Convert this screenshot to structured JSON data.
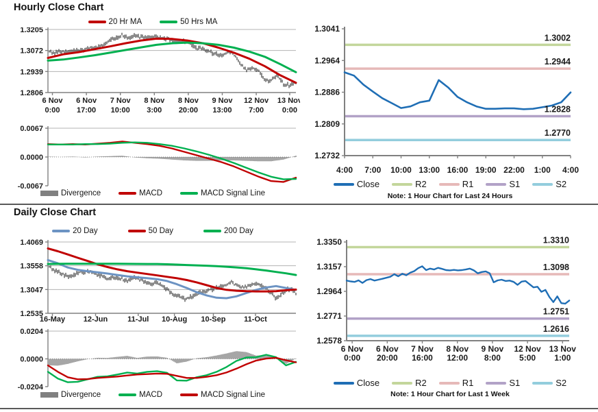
{
  "page": {
    "hourly_title": "Hourly Close Chart",
    "daily_title": "Daily Close Chart"
  },
  "colors": {
    "black_series": "#141414",
    "red": "#C00000",
    "green": "#00B050",
    "steel_blue": "#6C93C3",
    "pivot_blue": "#1F6EB5",
    "r2": "#C3D69B",
    "r1": "#E6B9B8",
    "s1": "#B2A2C7",
    "s2": "#93CDDD",
    "divergence_gray": "#808080",
    "axis_gray": "#808080",
    "grid_gray": "#B3B3B3"
  },
  "chart_data": [
    {
      "id": "hourly_price",
      "type": "line",
      "title": "Hourly Close Chart",
      "ylim": [
        1.2806,
        1.3205
      ],
      "yticks": [
        "1.3205",
        "1.3072",
        "1.2939",
        "1.2806"
      ],
      "xticks": [
        "6 Nov|0:00",
        "6 Nov|17:00",
        "7 Nov|10:00",
        "8 Nov|3:00",
        "8 Nov|20:00",
        "9 Nov|13:00",
        "12 Nov|7:00",
        "13 Nov|0:00"
      ],
      "xtick_pos": [
        0.018,
        0.155,
        0.292,
        0.429,
        0.566,
        0.703,
        0.84,
        0.975
      ],
      "grid": "price",
      "legend": [
        {
          "label": "20 Hr MA",
          "color": "#C00000"
        },
        {
          "label": "50 Hrs MA",
          "color": "#00B050"
        }
      ],
      "series": [
        {
          "name": "Close",
          "color": "#141414",
          "style": "bars",
          "values": [
            1.306,
            1.3058,
            1.3068,
            1.3062,
            1.3075,
            1.3068,
            1.308,
            1.3085,
            1.3095,
            1.3105,
            1.3135,
            1.315,
            1.317,
            1.3152,
            1.3165,
            1.3158,
            1.316,
            1.3155,
            1.3152,
            1.3148,
            1.3145,
            1.3118,
            1.3135,
            1.3118,
            1.3085,
            1.3082,
            1.3065,
            1.305,
            1.304,
            1.3062,
            1.305,
            1.299,
            1.2952,
            1.2962,
            1.2945,
            1.2888,
            1.288,
            1.2918,
            1.286,
            1.2852,
            1.2872
          ]
        },
        {
          "name": "20 Hr MA",
          "color": "#C00000",
          "width": 3,
          "values": [
            1.3025,
            1.3048,
            1.3062,
            1.308,
            1.3098,
            1.3118,
            1.3135,
            1.3147,
            1.3145,
            1.3135,
            1.3118,
            1.309,
            1.3058,
            1.302,
            1.2972,
            1.2915,
            1.2868
          ]
        },
        {
          "name": "50 Hrs MA",
          "color": "#00B050",
          "width": 3,
          "values": [
            1.3008,
            1.3015,
            1.3028,
            1.3042,
            1.3058,
            1.3075,
            1.3092,
            1.3108,
            1.3118,
            1.3122,
            1.3118,
            1.3108,
            1.309,
            1.3065,
            1.3032,
            1.2985,
            1.2935
          ]
        }
      ]
    },
    {
      "id": "hourly_macd",
      "type": "line",
      "ylim": [
        -0.0067,
        0.0067
      ],
      "yticks": [
        "0.0067",
        "0.0000",
        "-0.0067"
      ],
      "grid": "macd",
      "legend": [
        {
          "label": "Divergence",
          "color": "#808080",
          "shape": "bar"
        },
        {
          "label": "MACD",
          "color": "#C00000"
        },
        {
          "label": "MACD Signal Line",
          "color": "#00B050"
        }
      ],
      "divergence": {
        "a": "MACD",
        "b": "MACD Signal Line"
      },
      "series": [
        {
          "name": "MACD",
          "color": "#C00000",
          "width": 2.4,
          "values": [
            0.003,
            0.0029,
            0.003,
            0.0029,
            0.0031,
            0.0033,
            0.0036,
            0.0033,
            0.003,
            0.0026,
            0.002,
            0.0012,
            0.0004,
            -0.0004,
            -0.0012,
            -0.0022,
            -0.0034,
            -0.0046,
            -0.0056,
            -0.0058,
            -0.0048
          ]
        },
        {
          "name": "MACD Signal Line",
          "color": "#00B050",
          "width": 2.4,
          "values": [
            0.0029,
            0.0029,
            0.0029,
            0.003,
            0.003,
            0.0031,
            0.0033,
            0.0034,
            0.0033,
            0.003,
            0.0026,
            0.002,
            0.0013,
            0.0005,
            -0.0004,
            -0.0014,
            -0.0025,
            -0.0036,
            -0.0046,
            -0.0052,
            -0.0051
          ]
        }
      ]
    },
    {
      "id": "hourly_pivot",
      "type": "line",
      "note": "Note: 1 Hour Chart for Last 24 Hours",
      "ylim": [
        1.2732,
        1.3041
      ],
      "yticks": [
        "1.3041",
        "1.2964",
        "1.2886",
        "1.2809",
        "1.2732"
      ],
      "xticks": [
        "4:00",
        "7:00",
        "10:00",
        "13:00",
        "16:00",
        "19:00",
        "22:00",
        "1:00",
        "4:00"
      ],
      "xtick_pos": [
        0,
        0.125,
        0.25,
        0.375,
        0.5,
        0.625,
        0.75,
        0.875,
        1
      ],
      "grid": "pivot",
      "legend": [
        {
          "label": "Close",
          "color": "#1F6EB5"
        },
        {
          "label": "R2",
          "color": "#C3D69B"
        },
        {
          "label": "R1",
          "color": "#E6B9B8"
        },
        {
          "label": "S1",
          "color": "#B2A2C7"
        },
        {
          "label": "S2",
          "color": "#93CDDD"
        }
      ],
      "series": [
        {
          "name": "R2",
          "style": "hline",
          "value": 1.3002,
          "label": "1.3002",
          "color": "#C3D69B"
        },
        {
          "name": "R1",
          "style": "hline",
          "value": 1.2944,
          "label": "1.2944",
          "color": "#E6B9B8"
        },
        {
          "name": "S1",
          "style": "hline",
          "value": 1.2828,
          "label": "1.2828",
          "color": "#B2A2C7"
        },
        {
          "name": "S2",
          "style": "hline",
          "value": 1.277,
          "label": "1.2770",
          "color": "#93CDDD"
        },
        {
          "name": "Close",
          "color": "#1F6EB5",
          "width": 2.6,
          "values": [
            1.2935,
            1.2927,
            1.2905,
            1.2888,
            1.2872,
            1.286,
            1.2848,
            1.2852,
            1.2862,
            1.2866,
            1.2916,
            1.2898,
            1.2875,
            1.2862,
            1.2852,
            1.2846,
            1.2846,
            1.2847,
            1.2847,
            1.2845,
            1.2846,
            1.285,
            1.2854,
            1.2862,
            1.2886
          ]
        }
      ]
    },
    {
      "id": "daily_price",
      "type": "line",
      "title": "Daily Close Chart",
      "ylim": [
        1.2535,
        1.4069
      ],
      "yticks": [
        "1.4069",
        "1.3558",
        "1.3047",
        "1.2535"
      ],
      "xticks": [
        "16-May",
        "12-Jun",
        "11-Jul",
        "10-Aug",
        "10-Sep",
        "11-Oct"
      ],
      "xtick_pos": [
        0.018,
        0.192,
        0.364,
        0.51,
        0.667,
        0.837
      ],
      "grid": "price",
      "legend": [
        {
          "label": "20 Day",
          "color": "#6C93C3"
        },
        {
          "label": "50 Day",
          "color": "#C00000"
        },
        {
          "label": "200 Day",
          "color": "#00B050"
        }
      ],
      "series": [
        {
          "name": "Close",
          "color": "#141414",
          "style": "bars",
          "values": [
            1.353,
            1.348,
            1.343,
            1.338,
            1.333,
            1.336,
            1.3395,
            1.342,
            1.343,
            1.3405,
            1.337,
            1.3335,
            1.326,
            1.329,
            1.33,
            1.327,
            1.3235,
            1.33,
            1.329,
            1.325,
            1.3205,
            1.3155,
            1.3185,
            1.313,
            1.3055,
            1.2985,
            1.2905,
            1.287,
            1.284,
            1.29,
            1.295,
            1.298,
            1.302,
            1.305,
            1.308,
            1.312,
            1.315,
            1.32,
            1.315,
            1.31,
            1.312,
            1.315,
            1.318,
            1.314,
            1.309,
            1.296,
            1.285,
            1.294,
            1.304,
            1.306,
            1.297
          ]
        },
        {
          "name": "20 Day",
          "color": "#6C93C3",
          "width": 3,
          "values": [
            1.368,
            1.361,
            1.352,
            1.347,
            1.344,
            1.3415,
            1.339,
            1.336,
            1.333,
            1.331,
            1.329,
            1.327,
            1.323,
            1.316,
            1.308,
            1.299,
            1.292,
            1.287,
            1.286,
            1.29,
            1.297,
            1.304,
            1.309,
            1.312,
            1.308,
            1.304
          ]
        },
        {
          "name": "50 Day",
          "color": "#C00000",
          "width": 3,
          "values": [
            1.393,
            1.387,
            1.38,
            1.373,
            1.366,
            1.359,
            1.353,
            1.348,
            1.344,
            1.341,
            1.338,
            1.335,
            1.332,
            1.329,
            1.325,
            1.32,
            1.314,
            1.308,
            1.304,
            1.302,
            1.301,
            1.3005,
            1.3005,
            1.301,
            1.303,
            1.3045
          ]
        },
        {
          "name": "200 Day",
          "color": "#00B050",
          "width": 3,
          "values": [
            1.3595,
            1.3598,
            1.36,
            1.36,
            1.36,
            1.36,
            1.36,
            1.36,
            1.3598,
            1.3597,
            1.3596,
            1.3595,
            1.359,
            1.3582,
            1.3574,
            1.3566,
            1.3558,
            1.3548,
            1.3536,
            1.3522,
            1.3505,
            1.348,
            1.3455,
            1.3425,
            1.3395,
            1.336
          ]
        }
      ]
    },
    {
      "id": "daily_macd",
      "type": "line",
      "ylim": [
        -0.0204,
        0.0204
      ],
      "yticks": [
        "0.0204",
        "0.0000",
        "-0.0204"
      ],
      "grid": "macd",
      "legend": [
        {
          "label": "Divergence",
          "color": "#808080",
          "shape": "bar"
        },
        {
          "label": "MACD",
          "color": "#00B050"
        },
        {
          "label": "MACD Signal Line",
          "color": "#C00000"
        }
      ],
      "divergence": {
        "a": "MACD",
        "b": "MACD Signal Line"
      },
      "series": [
        {
          "name": "MACD",
          "color": "#00B050",
          "width": 2.4,
          "values": [
            -0.0095,
            -0.0145,
            -0.0172,
            -0.0168,
            -0.015,
            -0.0132,
            -0.0128,
            -0.0115,
            -0.01,
            -0.0108,
            -0.0095,
            -0.009,
            -0.0102,
            -0.0158,
            -0.016,
            -0.0135,
            -0.012,
            -0.0095,
            -0.006,
            -0.0015,
            0.001,
            0.0012,
            0.003,
            0.0012,
            -0.0048,
            -0.0022
          ]
        },
        {
          "name": "MACD Signal Line",
          "color": "#C00000",
          "width": 2.4,
          "values": [
            -0.0048,
            -0.0095,
            -0.0135,
            -0.015,
            -0.0148,
            -0.014,
            -0.0135,
            -0.013,
            -0.0122,
            -0.0115,
            -0.0112,
            -0.0108,
            -0.011,
            -0.0125,
            -0.014,
            -0.014,
            -0.0132,
            -0.012,
            -0.01,
            -0.0072,
            -0.004,
            -0.0012,
            0.0002,
            0.0008,
            -0.001,
            -0.0025
          ]
        }
      ]
    },
    {
      "id": "daily_pivot",
      "type": "line",
      "note": "Note: 1 Hour Chart for Last 1 Week",
      "ylim": [
        1.2578,
        1.335
      ],
      "yticks": [
        "1.3350",
        "1.3157",
        "1.2964",
        "1.2771",
        "1.2578"
      ],
      "xticks": [
        "6 Nov|0:00",
        "6 Nov|20:00",
        "7 Nov|16:00",
        "8 Nov|12:00",
        "9 Nov|8:00",
        "12 Nov|5:00",
        "13 Nov|1:00"
      ],
      "xtick_pos": [
        0.025,
        0.1825,
        0.34,
        0.4975,
        0.655,
        0.8125,
        0.97
      ],
      "grid": "pivot",
      "legend": [
        {
          "label": "Close",
          "color": "#1F6EB5"
        },
        {
          "label": "R2",
          "color": "#C3D69B"
        },
        {
          "label": "R1",
          "color": "#E6B9B8"
        },
        {
          "label": "S1",
          "color": "#B2A2C7"
        },
        {
          "label": "S2",
          "color": "#93CDDD"
        }
      ],
      "series": [
        {
          "name": "R2",
          "style": "hline",
          "value": 1.331,
          "label": "1.3310",
          "color": "#C3D69B"
        },
        {
          "name": "R1",
          "style": "hline",
          "value": 1.3098,
          "label": "1.3098",
          "color": "#E6B9B8"
        },
        {
          "name": "S1",
          "style": "hline",
          "value": 1.2751,
          "label": "1.2751",
          "color": "#B2A2C7"
        },
        {
          "name": "S2",
          "style": "hline",
          "value": 1.2616,
          "label": "1.2616",
          "color": "#93CDDD"
        },
        {
          "name": "Close",
          "color": "#1F6EB5",
          "width": 2.4,
          "values": [
            1.3048,
            1.3042,
            1.3038,
            1.305,
            1.303,
            1.3052,
            1.306,
            1.3048,
            1.3055,
            1.3062,
            1.307,
            1.3078,
            1.3098,
            1.3082,
            1.3102,
            1.309,
            1.311,
            1.3122,
            1.3145,
            1.316,
            1.313,
            1.3142,
            1.3135,
            1.3148,
            1.314,
            1.313,
            1.3128,
            1.3132,
            1.3128,
            1.313,
            1.3135,
            1.3142,
            1.3128,
            1.3105,
            1.3115,
            1.312,
            1.3105,
            1.3035,
            1.305,
            1.3055,
            1.3045,
            1.3048,
            1.3038,
            1.3015,
            1.304,
            1.3045,
            1.302,
            1.2995,
            1.3,
            1.296,
            1.2975,
            1.292,
            1.288,
            1.2925,
            1.2872,
            1.2868,
            1.2892
          ]
        }
      ]
    }
  ]
}
